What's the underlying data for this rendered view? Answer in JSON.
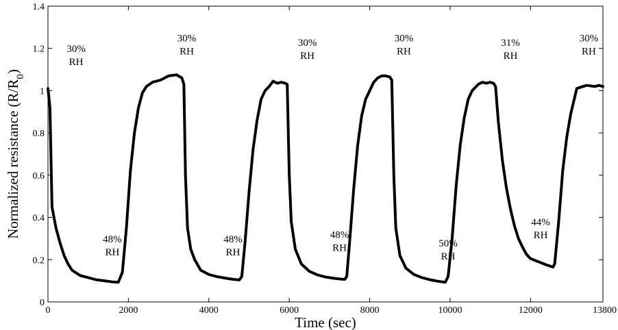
{
  "chart_data": {
    "type": "line",
    "xlabel": "Time (sec)",
    "ylabel_main": "Normalized resistance (R/R",
    "ylabel_sub": "0",
    "ylabel_close": ")",
    "xlim": [
      0,
      13800
    ],
    "ylim": [
      0,
      1.4
    ],
    "xticks": [
      0,
      2000,
      4000,
      6000,
      8000,
      10000,
      12000,
      13800
    ],
    "xtick_labels": [
      "0",
      "2000",
      "4000",
      "6000",
      "8000",
      "10000",
      "12000",
      "13800"
    ],
    "yticks": [
      0,
      0.2,
      0.4,
      0.6,
      0.8,
      1,
      1.2,
      1.4
    ],
    "ytick_labels": [
      "0",
      "0.2",
      "0.4",
      "0.6",
      "0.8",
      "1",
      "1.2",
      "1.4"
    ],
    "grid": false,
    "series": [
      {
        "name": "Normalized resistance",
        "color": "#000000",
        "points": [
          [
            0,
            1.01
          ],
          [
            50,
            0.92
          ],
          [
            100,
            0.45
          ],
          [
            150,
            0.4
          ],
          [
            200,
            0.35
          ],
          [
            300,
            0.28
          ],
          [
            400,
            0.22
          ],
          [
            500,
            0.18
          ],
          [
            600,
            0.15
          ],
          [
            800,
            0.125
          ],
          [
            1000,
            0.115
          ],
          [
            1200,
            0.105
          ],
          [
            1400,
            0.1
          ],
          [
            1600,
            0.095
          ],
          [
            1750,
            0.093
          ],
          [
            1850,
            0.14
          ],
          [
            1950,
            0.35
          ],
          [
            2050,
            0.62
          ],
          [
            2150,
            0.8
          ],
          [
            2250,
            0.92
          ],
          [
            2350,
            0.99
          ],
          [
            2450,
            1.02
          ],
          [
            2600,
            1.04
          ],
          [
            2800,
            1.05
          ],
          [
            3000,
            1.07
          ],
          [
            3200,
            1.075
          ],
          [
            3330,
            1.06
          ],
          [
            3380,
            1.03
          ],
          [
            3420,
            0.6
          ],
          [
            3470,
            0.35
          ],
          [
            3550,
            0.25
          ],
          [
            3650,
            0.2
          ],
          [
            3800,
            0.15
          ],
          [
            4000,
            0.13
          ],
          [
            4200,
            0.12
          ],
          [
            4400,
            0.113
          ],
          [
            4600,
            0.107
          ],
          [
            4760,
            0.104
          ],
          [
            4820,
            0.12
          ],
          [
            4900,
            0.28
          ],
          [
            5000,
            0.52
          ],
          [
            5100,
            0.72
          ],
          [
            5200,
            0.86
          ],
          [
            5300,
            0.96
          ],
          [
            5400,
            1.0
          ],
          [
            5500,
            1.02
          ],
          [
            5600,
            1.045
          ],
          [
            5700,
            1.035
          ],
          [
            5800,
            1.04
          ],
          [
            5900,
            1.035
          ],
          [
            5950,
            1.03
          ],
          [
            6000,
            0.6
          ],
          [
            6050,
            0.38
          ],
          [
            6150,
            0.25
          ],
          [
            6300,
            0.18
          ],
          [
            6500,
            0.145
          ],
          [
            6700,
            0.128
          ],
          [
            6900,
            0.118
          ],
          [
            7100,
            0.112
          ],
          [
            7300,
            0.108
          ],
          [
            7380,
            0.107
          ],
          [
            7430,
            0.12
          ],
          [
            7500,
            0.28
          ],
          [
            7600,
            0.53
          ],
          [
            7700,
            0.74
          ],
          [
            7800,
            0.88
          ],
          [
            7900,
            0.96
          ],
          [
            8000,
            1.0
          ],
          [
            8100,
            1.04
          ],
          [
            8200,
            1.06
          ],
          [
            8300,
            1.07
          ],
          [
            8400,
            1.07
          ],
          [
            8500,
            1.065
          ],
          [
            8550,
            1.05
          ],
          [
            8600,
            0.6
          ],
          [
            8650,
            0.35
          ],
          [
            8750,
            0.22
          ],
          [
            8900,
            0.16
          ],
          [
            9100,
            0.13
          ],
          [
            9300,
            0.115
          ],
          [
            9500,
            0.105
          ],
          [
            9700,
            0.098
          ],
          [
            9880,
            0.093
          ],
          [
            9950,
            0.12
          ],
          [
            10050,
            0.3
          ],
          [
            10150,
            0.55
          ],
          [
            10250,
            0.74
          ],
          [
            10350,
            0.87
          ],
          [
            10450,
            0.96
          ],
          [
            10550,
            1.0
          ],
          [
            10700,
            1.03
          ],
          [
            10800,
            1.04
          ],
          [
            10900,
            1.035
          ],
          [
            11000,
            1.04
          ],
          [
            11080,
            1.035
          ],
          [
            11130,
            1.02
          ],
          [
            11200,
            0.85
          ],
          [
            11300,
            0.67
          ],
          [
            11400,
            0.54
          ],
          [
            11500,
            0.44
          ],
          [
            11600,
            0.36
          ],
          [
            11700,
            0.3
          ],
          [
            11800,
            0.26
          ],
          [
            11900,
            0.225
          ],
          [
            12000,
            0.205
          ],
          [
            12200,
            0.19
          ],
          [
            12400,
            0.175
          ],
          [
            12560,
            0.165
          ],
          [
            12600,
            0.18
          ],
          [
            12700,
            0.38
          ],
          [
            12800,
            0.62
          ],
          [
            12900,
            0.78
          ],
          [
            13000,
            0.89
          ],
          [
            13100,
            0.97
          ],
          [
            13150,
            1.01
          ],
          [
            13300,
            1.02
          ],
          [
            13400,
            1.025
          ],
          [
            13600,
            1.02
          ],
          [
            13700,
            1.025
          ],
          [
            13800,
            1.02
          ]
        ]
      }
    ],
    "annotations": [
      {
        "line1": "30%",
        "line2": "RH",
        "x": 700,
        "y": 1.15
      },
      {
        "line1": "48%",
        "line2": "RH",
        "x": 1600,
        "y": 0.25
      },
      {
        "line1": "30%",
        "line2": "RH",
        "x": 3450,
        "y": 1.2
      },
      {
        "line1": "48%",
        "line2": "RH",
        "x": 4600,
        "y": 0.25
      },
      {
        "line1": "30%",
        "line2": "RH",
        "x": 6450,
        "y": 1.18
      },
      {
        "line1": "48%",
        "line2": "RH",
        "x": 7250,
        "y": 0.27
      },
      {
        "line1": "30%",
        "line2": "RH",
        "x": 8850,
        "y": 1.2
      },
      {
        "line1": "50%",
        "line2": "RH",
        "x": 9950,
        "y": 0.23
      },
      {
        "line1": "31%",
        "line2": "RH",
        "x": 11500,
        "y": 1.18
      },
      {
        "line1": "44%",
        "line2": "RH",
        "x": 12250,
        "y": 0.33
      },
      {
        "line1": "30%",
        "line2": "RH",
        "x": 13450,
        "y": 1.2
      }
    ]
  }
}
